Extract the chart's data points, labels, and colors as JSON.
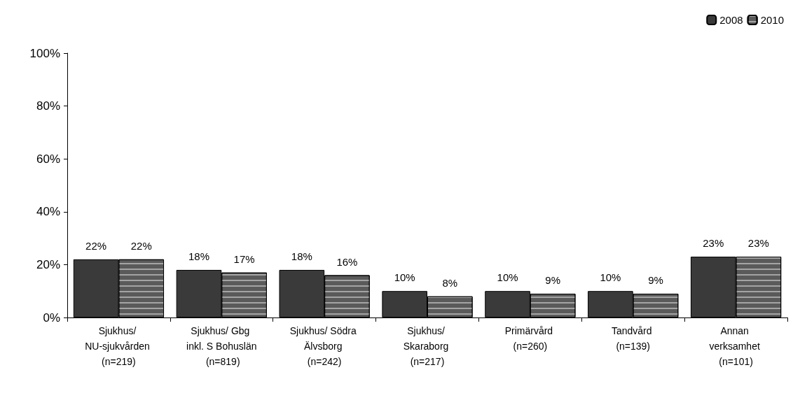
{
  "chart_data": {
    "type": "bar",
    "categories": [
      "Sjukhus/ NU-sjukvården (n=219)",
      "Sjukhus/ Gbg inkl. S Bohuslän (n=819)",
      "Sjukhus/ Södra Älvsborg (n=242)",
      "Sjukhus/ Skaraborg (n=217)",
      "Primärvård (n=260)",
      "Tandvård (n=139)",
      "Annan verksamhet (n=101)"
    ],
    "series": [
      {
        "name": "2008",
        "color": "#3a3a3a",
        "values": [
          22,
          18,
          18,
          10,
          10,
          10,
          23
        ],
        "value_labels": [
          "22%",
          "18%",
          "18%",
          "10%",
          "10%",
          "10%",
          "23%"
        ]
      },
      {
        "name": "2010",
        "color": "#5a5a5a",
        "values": [
          22,
          17,
          16,
          8,
          9,
          9,
          23
        ],
        "value_labels": [
          "22%",
          "17%",
          "16%",
          "8%",
          "9%",
          "9%",
          "23%"
        ]
      }
    ],
    "ylim": [
      0,
      100
    ],
    "yticks": [
      {
        "value": 0,
        "label": "0%"
      },
      {
        "value": 20,
        "label": "20%"
      },
      {
        "value": 40,
        "label": "40%"
      },
      {
        "value": 60,
        "label": "60%"
      },
      {
        "value": 80,
        "label": "80%"
      },
      {
        "value": 100,
        "label": "100%"
      }
    ],
    "grid": false,
    "legend": "top right"
  }
}
